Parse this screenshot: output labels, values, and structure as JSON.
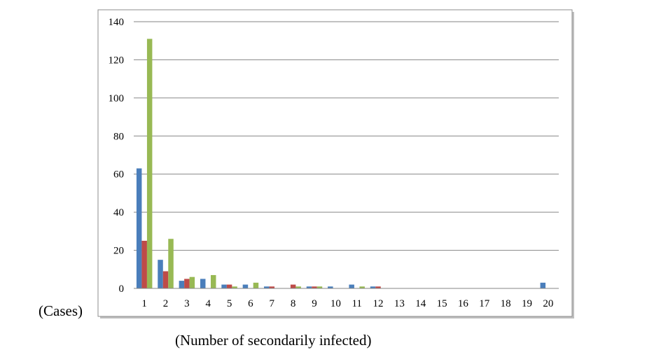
{
  "chart_data": {
    "type": "bar",
    "title": "",
    "xlabel": "(Number of secondarily infected)",
    "ylabel": "(Cases)",
    "ylim": [
      0,
      140
    ],
    "yticks": [
      0,
      20,
      40,
      60,
      80,
      100,
      120,
      140
    ],
    "grid": true,
    "legend": "none",
    "categories": [
      "1",
      "2",
      "3",
      "4",
      "5",
      "6",
      "7",
      "8",
      "9",
      "10",
      "11",
      "12",
      "13",
      "14",
      "15",
      "16",
      "17",
      "18",
      "19",
      "20"
    ],
    "series": [
      {
        "color": "#4a7ebb",
        "values": [
          63,
          15,
          4,
          5,
          2,
          2,
          1,
          0,
          1,
          1,
          2,
          1,
          0,
          0,
          0,
          0,
          0,
          0,
          0,
          3
        ]
      },
      {
        "color": "#be4b48",
        "values": [
          25,
          9,
          5,
          0,
          2,
          0,
          1,
          2,
          1,
          0,
          0,
          1,
          0,
          0,
          0,
          0,
          0,
          0,
          0,
          0
        ]
      },
      {
        "color": "#98b954",
        "values": [
          131,
          26,
          6,
          7,
          1,
          3,
          0,
          1,
          1,
          0,
          1,
          0,
          0,
          0,
          0,
          0,
          0,
          0,
          0,
          0
        ]
      }
    ]
  }
}
